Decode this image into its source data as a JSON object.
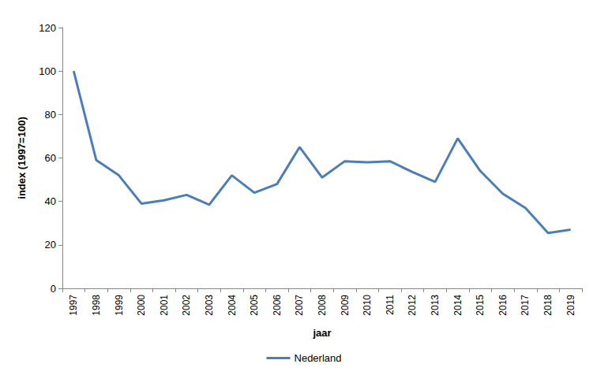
{
  "chart_data": {
    "type": "line",
    "xlabel": "jaar",
    "ylabel": "index (1997=100)",
    "categories": [
      "1997",
      "1998",
      "1999",
      "2000",
      "2001",
      "2002",
      "2003",
      "2004",
      "2005",
      "2006",
      "2007",
      "2008",
      "2009",
      "2010",
      "2011",
      "2012",
      "2013",
      "2014",
      "2015",
      "2016",
      "2017",
      "2018",
      "2019"
    ],
    "series": [
      {
        "name": "Nederland",
        "color": "#4a7ebb",
        "values": [
          100,
          59,
          52,
          39,
          40.5,
          43,
          38.5,
          52,
          44,
          48,
          65,
          51,
          58.5,
          58,
          58.5,
          53.5,
          49,
          69,
          54,
          43.5,
          37,
          25.5,
          27
        ]
      }
    ],
    "ylim": [
      0,
      120
    ],
    "yticks": [
      0,
      20,
      40,
      60,
      80,
      100,
      120
    ],
    "grid": false,
    "legend": "bottom"
  }
}
